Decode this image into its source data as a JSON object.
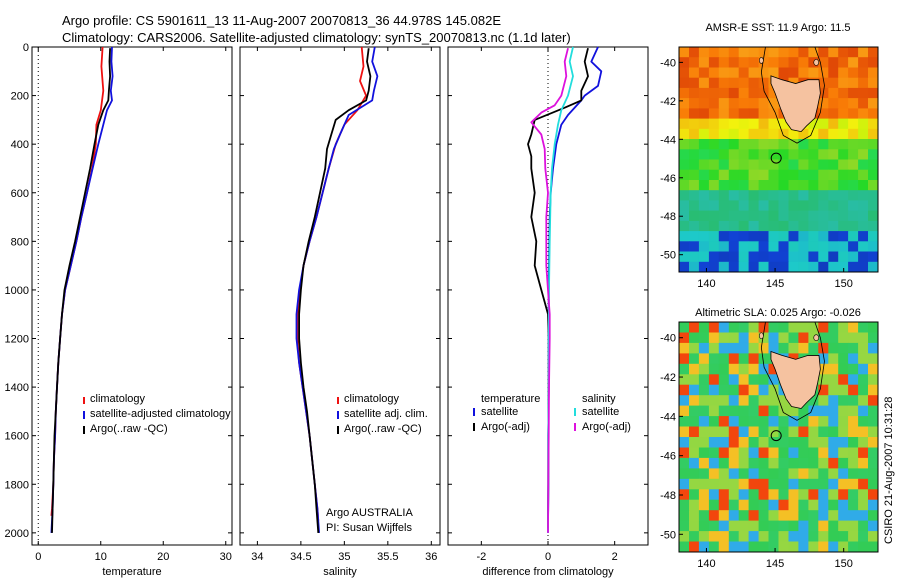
{
  "header": {
    "line1": "Argo profile: CS 5901611_13 11-Aug-2007 20070813_36 44.978S 145.082E",
    "line2": "Climatology: CARS2006. Satellite-adjusted climatology: synTS_20070813.nc (1.1d later)"
  },
  "side_label": "CSIRO 21-Aug-2007 10:31:28",
  "colors": {
    "climatology": "#ee1111",
    "satellite": "#1111dd",
    "argo": "#000000",
    "sal_satellite": "#22dddd",
    "sal_argo": "#dd11dd",
    "land": "#f5c2a0"
  },
  "depth_ticks": [
    "0",
    "200",
    "400",
    "600",
    "800",
    "1000",
    "1200",
    "1400",
    "1600",
    "1800",
    "2000"
  ],
  "chart_data": [
    {
      "type": "line",
      "xlabel": "temperature",
      "xlim": [
        -1,
        31
      ],
      "xticks": [
        "0",
        "10",
        "20",
        "30"
      ],
      "ylim": [
        0,
        2050
      ],
      "y_inverted": true,
      "legend": [
        "climatology",
        "satellite-adjusted climatology",
        "Argo(..raw -QC)"
      ],
      "series": [
        {
          "name": "climatology",
          "color": "climatology",
          "points": [
            [
              10.3,
              0
            ],
            [
              10.1,
              80
            ],
            [
              10.4,
              180
            ],
            [
              10.0,
              260
            ],
            [
              9.3,
              320
            ],
            [
              9.2,
              400
            ],
            [
              8.6,
              500
            ],
            [
              7.8,
              600
            ],
            [
              6.9,
              700
            ],
            [
              6.1,
              800
            ],
            [
              5.2,
              900
            ],
            [
              4.3,
              1000
            ],
            [
              3.8,
              1100
            ],
            [
              3.5,
              1200
            ],
            [
              3.2,
              1300
            ],
            [
              3.0,
              1400
            ],
            [
              2.8,
              1500
            ],
            [
              2.7,
              1600
            ],
            [
              2.5,
              1700
            ],
            [
              2.4,
              1800
            ],
            [
              2.2,
              1900
            ],
            [
              2.1,
              1930
            ]
          ]
        },
        {
          "name": "satellite-adjusted climatology",
          "color": "satellite",
          "points": [
            [
              11.8,
              0
            ],
            [
              11.7,
              60
            ],
            [
              11.9,
              120
            ],
            [
              11.6,
              180
            ],
            [
              11.8,
              220
            ],
            [
              11.0,
              260
            ],
            [
              10.4,
              320
            ],
            [
              9.6,
              400
            ],
            [
              8.7,
              500
            ],
            [
              7.8,
              600
            ],
            [
              6.9,
              700
            ],
            [
              6.1,
              800
            ],
            [
              5.2,
              900
            ],
            [
              4.3,
              1000
            ],
            [
              3.8,
              1100
            ],
            [
              3.5,
              1200
            ],
            [
              3.2,
              1300
            ],
            [
              3.0,
              1400
            ],
            [
              2.8,
              1500
            ],
            [
              2.7,
              1600
            ],
            [
              2.5,
              1700
            ],
            [
              2.4,
              1800
            ],
            [
              2.3,
              1900
            ],
            [
              2.1,
              2000
            ]
          ]
        },
        {
          "name": "Argo(..raw -QC)",
          "color": "argo",
          "points": [
            [
              11.5,
              5
            ],
            [
              11.4,
              60
            ],
            [
              11.5,
              120
            ],
            [
              11.3,
              180
            ],
            [
              11.2,
              220
            ],
            [
              10.4,
              260
            ],
            [
              9.6,
              320
            ],
            [
              9.0,
              400
            ],
            [
              8.3,
              500
            ],
            [
              7.5,
              600
            ],
            [
              6.7,
              700
            ],
            [
              5.9,
              800
            ],
            [
              5.0,
              900
            ],
            [
              4.2,
              1000
            ],
            [
              3.8,
              1100
            ],
            [
              3.5,
              1200
            ],
            [
              3.2,
              1300
            ],
            [
              3.0,
              1400
            ],
            [
              2.8,
              1500
            ],
            [
              2.6,
              1600
            ],
            [
              2.5,
              1700
            ],
            [
              2.4,
              1800
            ],
            [
              2.3,
              1900
            ],
            [
              2.2,
              2000
            ]
          ]
        }
      ]
    },
    {
      "type": "line",
      "xlabel": "salinity",
      "xlim": [
        33.8,
        36.1
      ],
      "xticks": [
        "34",
        "34.5",
        "35",
        "35.5",
        "36"
      ],
      "ylim": [
        0,
        2050
      ],
      "y_inverted": true,
      "legend": [
        "climatology",
        "satellite adj. clim.",
        "Argo(..raw -QC)"
      ],
      "annotations": [
        "Argo AUSTRALIA",
        "PI: Susan Wijffels"
      ],
      "series": [
        {
          "name": "climatology",
          "color": "climatology",
          "points": [
            [
              35.2,
              0
            ],
            [
              35.22,
              80
            ],
            [
              35.18,
              140
            ],
            [
              35.25,
              200
            ],
            [
              35.15,
              260
            ],
            [
              35.0,
              320
            ],
            [
              34.9,
              400
            ],
            [
              34.82,
              500
            ],
            [
              34.75,
              600
            ],
            [
              34.68,
              700
            ],
            [
              34.6,
              800
            ],
            [
              34.53,
              900
            ],
            [
              34.49,
              1000
            ],
            [
              34.46,
              1100
            ],
            [
              34.46,
              1200
            ],
            [
              34.48,
              1300
            ],
            [
              34.52,
              1400
            ],
            [
              34.56,
              1500
            ],
            [
              34.6,
              1600
            ],
            [
              34.63,
              1700
            ],
            [
              34.66,
              1800
            ],
            [
              34.69,
              1900
            ],
            [
              34.7,
              1950
            ]
          ]
        },
        {
          "name": "satellite adj. clim.",
          "color": "satellite",
          "points": [
            [
              35.35,
              0
            ],
            [
              35.32,
              60
            ],
            [
              35.38,
              120
            ],
            [
              35.34,
              180
            ],
            [
              35.32,
              220
            ],
            [
              35.05,
              280
            ],
            [
              34.95,
              360
            ],
            [
              34.88,
              420
            ],
            [
              34.82,
              500
            ],
            [
              34.75,
              600
            ],
            [
              34.68,
              700
            ],
            [
              34.6,
              800
            ],
            [
              34.53,
              900
            ],
            [
              34.48,
              1000
            ],
            [
              34.45,
              1100
            ],
            [
              34.45,
              1200
            ],
            [
              34.48,
              1300
            ],
            [
              34.52,
              1400
            ],
            [
              34.56,
              1500
            ],
            [
              34.6,
              1600
            ],
            [
              34.63,
              1700
            ],
            [
              34.66,
              1800
            ],
            [
              34.69,
              1900
            ],
            [
              34.71,
              2000
            ]
          ]
        },
        {
          "name": "Argo(..raw -QC)",
          "color": "argo",
          "points": [
            [
              35.28,
              5
            ],
            [
              35.26,
              60
            ],
            [
              35.3,
              120
            ],
            [
              35.28,
              180
            ],
            [
              35.25,
              220
            ],
            [
              35.05,
              260
            ],
            [
              34.9,
              300
            ],
            [
              34.85,
              360
            ],
            [
              34.8,
              420
            ],
            [
              34.78,
              500
            ],
            [
              34.72,
              600
            ],
            [
              34.66,
              700
            ],
            [
              34.59,
              800
            ],
            [
              34.53,
              900
            ],
            [
              34.5,
              1000
            ],
            [
              34.48,
              1100
            ],
            [
              34.48,
              1200
            ],
            [
              34.5,
              1300
            ],
            [
              34.53,
              1400
            ],
            [
              34.57,
              1500
            ],
            [
              34.6,
              1600
            ],
            [
              34.63,
              1700
            ],
            [
              34.66,
              1800
            ],
            [
              34.68,
              1900
            ],
            [
              34.7,
              2000
            ]
          ]
        }
      ]
    },
    {
      "type": "line",
      "xlabel": "difference from climatology",
      "xlim": [
        -3,
        3
      ],
      "xticks": [
        "-2",
        "0",
        "2"
      ],
      "ylim": [
        0,
        2050
      ],
      "y_inverted": true,
      "legend": [
        "temperature",
        "satellite",
        "Argo(-adj)",
        "salinity",
        "satellite",
        "Argo(-adj)"
      ],
      "series": [
        {
          "name": "temperature satellite",
          "color": "satellite",
          "points": [
            [
              1.5,
              0
            ],
            [
              1.3,
              60
            ],
            [
              1.6,
              100
            ],
            [
              1.5,
              160
            ],
            [
              1.1,
              200
            ],
            [
              1.0,
              220
            ],
            [
              0.6,
              280
            ],
            [
              0.4,
              320
            ],
            [
              0.25,
              400
            ],
            [
              0.15,
              500
            ],
            [
              0.08,
              600
            ],
            [
              0.05,
              700
            ],
            [
              0.04,
              800
            ],
            [
              0.03,
              900
            ],
            [
              0.02,
              1000
            ],
            [
              0.02,
              1200
            ],
            [
              0.02,
              1400
            ],
            [
              0.01,
              1600
            ],
            [
              0.01,
              1800
            ],
            [
              0.0,
              2000
            ]
          ]
        },
        {
          "name": "temperature Argo(-adj)",
          "color": "argo",
          "points": [
            [
              1.2,
              5
            ],
            [
              1.1,
              60
            ],
            [
              1.2,
              120
            ],
            [
              1.0,
              180
            ],
            [
              1.0,
              220
            ],
            [
              0.5,
              250
            ],
            [
              -0.4,
              300
            ],
            [
              -0.5,
              360
            ],
            [
              -0.6,
              400
            ],
            [
              -0.5,
              450
            ],
            [
              -0.5,
              500
            ],
            [
              -0.4,
              600
            ],
            [
              -0.5,
              700
            ],
            [
              -0.35,
              800
            ],
            [
              -0.4,
              900
            ],
            [
              -0.2,
              1000
            ],
            [
              -0.1,
              1050
            ],
            [
              0.0,
              1100
            ],
            [
              0.02,
              1200
            ],
            [
              0.02,
              1400
            ],
            [
              0.01,
              1600
            ],
            [
              0.01,
              1800
            ],
            [
              0.0,
              1980
            ]
          ]
        },
        {
          "name": "salinity satellite",
          "color": "sal_satellite",
          "points": [
            [
              0.75,
              0
            ],
            [
              0.65,
              60
            ],
            [
              0.75,
              120
            ],
            [
              0.6,
              200
            ],
            [
              0.4,
              260
            ],
            [
              0.3,
              320
            ],
            [
              0.2,
              400
            ],
            [
              0.12,
              500
            ],
            [
              0.08,
              600
            ],
            [
              0.05,
              800
            ],
            [
              0.03,
              1000
            ],
            [
              0.02,
              1200
            ],
            [
              0.02,
              1400
            ],
            [
              0.01,
              1600
            ],
            [
              0.01,
              1800
            ],
            [
              0.0,
              2000
            ]
          ]
        },
        {
          "name": "salinity Argo(-adj)",
          "color": "sal_argo",
          "points": [
            [
              0.6,
              5
            ],
            [
              0.5,
              60
            ],
            [
              0.55,
              120
            ],
            [
              0.4,
              200
            ],
            [
              0.2,
              240
            ],
            [
              -0.2,
              270
            ],
            [
              -0.5,
              310
            ],
            [
              -0.2,
              360
            ],
            [
              -0.1,
              420
            ],
            [
              -0.08,
              500
            ],
            [
              0.0,
              600
            ],
            [
              -0.05,
              700
            ],
            [
              -0.05,
              800
            ],
            [
              -0.05,
              900
            ],
            [
              0.0,
              1000
            ],
            [
              0.05,
              1100
            ],
            [
              0.05,
              1200
            ],
            [
              0.03,
              1400
            ],
            [
              0.02,
              1600
            ],
            [
              0.01,
              1800
            ],
            [
              0.0,
              2000
            ]
          ]
        }
      ]
    }
  ],
  "maps": [
    {
      "title": "AMSR-E SST: 11.9 Argo: 11.5",
      "xticks": [
        "140",
        "145",
        "150"
      ],
      "yticks": [
        "-40",
        "-42",
        "-44",
        "-46",
        "-48",
        "-50"
      ]
    },
    {
      "title": "Altimetric SLA: 0.025 Argo: -0.026",
      "xticks": [
        "140",
        "145",
        "150"
      ],
      "yticks": [
        "-40",
        "-42",
        "-44",
        "-46",
        "-48",
        "-50"
      ]
    }
  ]
}
